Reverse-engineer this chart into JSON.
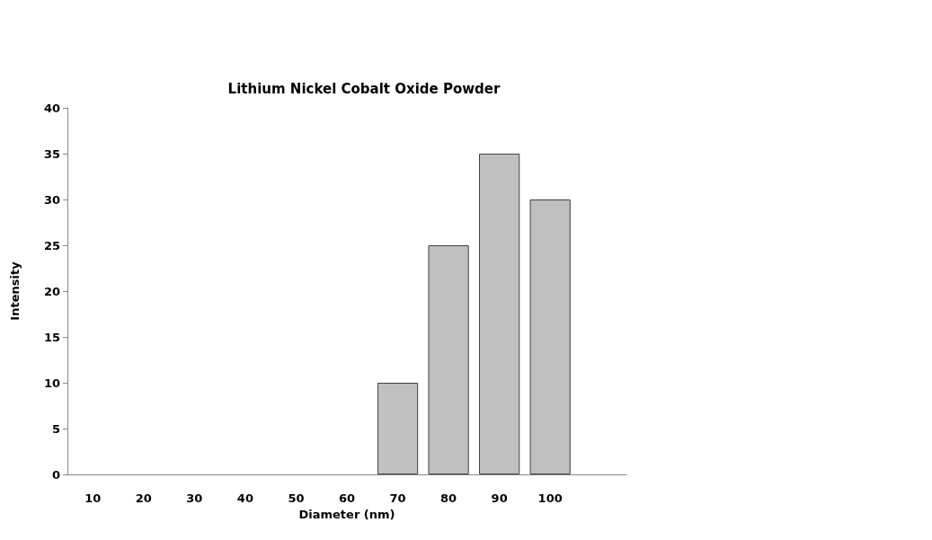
{
  "chart_data": {
    "type": "bar",
    "title": "Lithium Nickel Cobalt Oxide Powder",
    "xlabel": "Diameter (nm)",
    "ylabel": "Intensity",
    "categories": [
      "10",
      "20",
      "30",
      "40",
      "50",
      "60",
      "70",
      "80",
      "90",
      "100",
      null
    ],
    "values": [
      0,
      0,
      0,
      0,
      0,
      0,
      10,
      25,
      35,
      30,
      null
    ],
    "color": "#c0c0c0",
    "ylim": [
      0,
      40
    ],
    "yticks": [
      0,
      5,
      10,
      15,
      20,
      25,
      30,
      35,
      40
    ],
    "grid": false
  }
}
